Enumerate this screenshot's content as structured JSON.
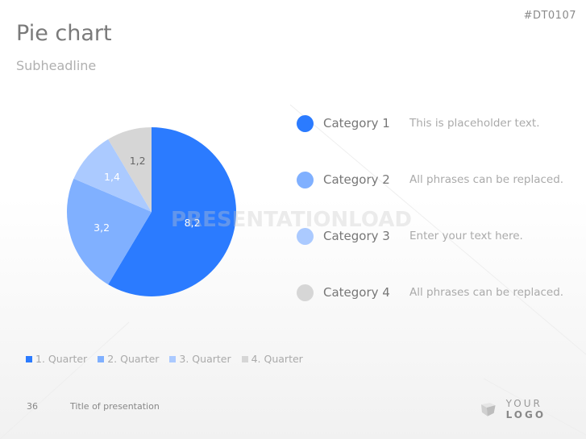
{
  "header": {
    "code": "#DT0107",
    "title": "Pie chart",
    "subtitle": "Subheadline"
  },
  "chart_data": {
    "type": "pie",
    "title": "",
    "categories": [
      "1. Quarter",
      "2. Quarter",
      "3. Quarter",
      "4. Quarter"
    ],
    "values": [
      8.2,
      3.2,
      1.4,
      1.2
    ],
    "labels": [
      "8,2",
      "3,2",
      "1,4",
      "1,2"
    ],
    "colors": [
      "#2b7bff",
      "#80b0ff",
      "#abcaff",
      "#d6d6d6"
    ],
    "label_colors": [
      "#ffffff",
      "#ffffff",
      "#ffffff",
      "#666666"
    ],
    "start": "top",
    "direction": "clockwise",
    "legend": "bottom"
  },
  "categories": [
    {
      "name": "Category 1",
      "text": "This is placeholder text.",
      "color": "#2b7bff"
    },
    {
      "name": "Category 2",
      "text": "All phrases can be replaced.",
      "color": "#80b0ff"
    },
    {
      "name": "Category 3",
      "text": "Enter your text here.",
      "color": "#abcaff"
    },
    {
      "name": "Category 4",
      "text": "All phrases can be replaced.",
      "color": "#d6d6d6"
    }
  ],
  "watermark": "PRESENTATIONLOAD",
  "footer": {
    "page": "36",
    "title": "Title of presentation",
    "logo_a": "YOUR",
    "logo_b": "LOGO"
  }
}
